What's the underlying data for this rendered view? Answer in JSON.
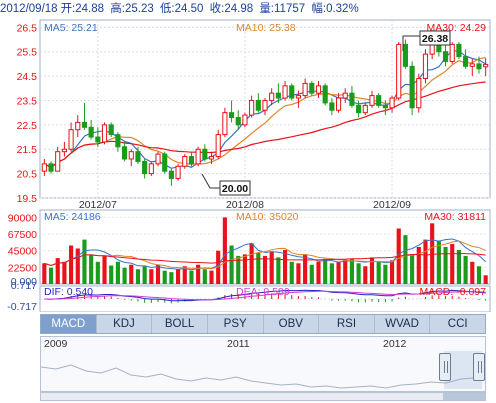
{
  "header": {
    "date": "2012/09/18",
    "open_label": "开:",
    "open": "24.88",
    "high_label": "高:",
    "high": "25.23",
    "low_label": "低:",
    "low": "24.50",
    "close_label": "收:",
    "close": "24.98",
    "volume_label": "量:",
    "volume": "11757",
    "change_label": "幅:",
    "change": "0.32%"
  },
  "colors": {
    "up": "#e8121b",
    "down": "#1b9b1b",
    "ma5": "#3b73c6",
    "ma10": "#e0852a",
    "ma30": "#e8121b",
    "dif": "#2424c8",
    "dea": "#d23cd2",
    "macd_up": "#e8121b",
    "macd_down": "#1b9b1b"
  },
  "price_panel": {
    "ma5_label": "MA5: 25.21",
    "ma10_label": "MA10: 25.38",
    "ma30_label": "MA30: 24.29",
    "y_ticks": [
      "26.5",
      "25.5",
      "24.5",
      "23.5",
      "22.5",
      "21.5",
      "20.5",
      "19.5"
    ],
    "x_labels": [
      "2012/07",
      "2012/08",
      "2012/09"
    ],
    "max_marker": "26.38",
    "min_marker": "20.00"
  },
  "volume_panel": {
    "ma5_label": "MA5: 24186",
    "ma10_label": "MA10: 35020",
    "ma30_label": "MA30: 31811",
    "y_ticks": [
      "90000",
      "67500",
      "45000",
      "22500"
    ]
  },
  "macd_panel": {
    "dif_label": "DIF: 0.540",
    "dea_label": "DEA: 0.589",
    "macd_label": "MACD: -0.097",
    "y_ticks": [
      "0.717",
      "0.000",
      "-0.717"
    ]
  },
  "tabs": [
    "MACD",
    "KDJ",
    "BOLL",
    "PSY",
    "OBV",
    "RSI",
    "WVAD",
    "CCI"
  ],
  "navigator": {
    "years": [
      "2009",
      "2011",
      "2012"
    ]
  },
  "chart_data": {
    "type": "candlestick",
    "title": "",
    "x_range": [
      "2012/06/20",
      "2012/09/18"
    ],
    "ylim_price": [
      19.5,
      26.8
    ],
    "ylim_volume": [
      0,
      100000
    ],
    "ylim_macd": [
      -0.95,
      0.95
    ],
    "x_ticks": [
      "2012/07",
      "2012/08",
      "2012/09"
    ],
    "grid": true,
    "candles": [
      [
        20.6,
        21.1,
        20.4,
        20.9
      ],
      [
        20.9,
        21.0,
        20.5,
        20.6
      ],
      [
        20.6,
        21.6,
        20.6,
        21.4
      ],
      [
        21.4,
        21.8,
        21.2,
        21.5
      ],
      [
        21.5,
        22.6,
        21.4,
        22.3
      ],
      [
        22.3,
        22.9,
        22.0,
        22.6
      ],
      [
        22.6,
        23.4,
        22.3,
        22.4
      ],
      [
        22.4,
        22.7,
        21.9,
        22.0
      ],
      [
        22.0,
        22.4,
        21.6,
        21.8
      ],
      [
        21.8,
        22.6,
        21.7,
        22.5
      ],
      [
        22.5,
        22.6,
        22.0,
        22.1
      ],
      [
        22.1,
        22.2,
        21.4,
        21.6
      ],
      [
        21.6,
        21.8,
        21.0,
        21.1
      ],
      [
        21.1,
        21.5,
        20.8,
        21.4
      ],
      [
        21.4,
        21.6,
        20.9,
        21.0
      ],
      [
        21.0,
        21.1,
        20.3,
        20.5
      ],
      [
        20.5,
        21.0,
        20.4,
        20.9
      ],
      [
        20.9,
        21.4,
        20.8,
        21.3
      ],
      [
        21.3,
        21.4,
        20.5,
        20.6
      ],
      [
        20.6,
        20.7,
        20.0,
        20.3
      ],
      [
        20.3,
        20.9,
        20.2,
        20.8
      ],
      [
        20.8,
        21.3,
        20.7,
        21.2
      ],
      [
        21.2,
        21.4,
        20.8,
        20.9
      ],
      [
        20.9,
        21.6,
        20.8,
        21.5
      ],
      [
        21.5,
        21.7,
        21.0,
        21.1
      ],
      [
        21.1,
        21.4,
        20.9,
        21.2
      ],
      [
        21.2,
        22.3,
        21.1,
        22.1
      ],
      [
        22.1,
        23.2,
        22.0,
        23.0
      ],
      [
        23.0,
        23.5,
        22.6,
        22.8
      ],
      [
        22.8,
        23.1,
        22.3,
        22.5
      ],
      [
        22.5,
        23.0,
        22.4,
        22.9
      ],
      [
        22.9,
        23.7,
        22.8,
        23.5
      ],
      [
        23.5,
        23.8,
        23.0,
        23.1
      ],
      [
        23.1,
        23.6,
        22.9,
        23.5
      ],
      [
        23.5,
        24.0,
        23.3,
        23.8
      ],
      [
        23.8,
        24.2,
        23.4,
        23.6
      ],
      [
        23.6,
        24.3,
        23.5,
        24.1
      ],
      [
        24.1,
        24.2,
        23.5,
        23.6
      ],
      [
        23.6,
        23.9,
        23.2,
        23.7
      ],
      [
        23.7,
        24.4,
        23.6,
        24.2
      ],
      [
        24.2,
        24.3,
        23.7,
        23.8
      ],
      [
        23.8,
        24.3,
        23.6,
        24.1
      ],
      [
        24.1,
        24.2,
        23.3,
        23.4
      ],
      [
        23.4,
        23.6,
        22.9,
        23.1
      ],
      [
        23.1,
        23.8,
        23.0,
        23.6
      ],
      [
        23.6,
        24.0,
        23.4,
        23.8
      ],
      [
        23.8,
        24.1,
        23.2,
        23.3
      ],
      [
        23.3,
        23.5,
        22.8,
        23.0
      ],
      [
        23.0,
        23.4,
        22.9,
        23.3
      ],
      [
        23.3,
        23.9,
        23.2,
        23.7
      ],
      [
        23.7,
        23.8,
        23.2,
        23.3
      ],
      [
        23.3,
        23.5,
        22.9,
        23.2
      ],
      [
        23.2,
        23.7,
        23.0,
        23.6
      ],
      [
        23.6,
        25.9,
        23.5,
        25.8
      ],
      [
        25.8,
        26.0,
        24.8,
        24.9
      ],
      [
        24.9,
        25.1,
        22.9,
        23.2
      ],
      [
        23.2,
        24.6,
        23.0,
        24.4
      ],
      [
        24.4,
        25.6,
        24.2,
        25.4
      ],
      [
        25.4,
        26.38,
        25.2,
        25.9
      ],
      [
        25.9,
        26.1,
        25.3,
        25.5
      ],
      [
        25.5,
        25.8,
        24.9,
        25.1
      ],
      [
        25.1,
        25.9,
        25.0,
        25.8
      ],
      [
        25.8,
        25.9,
        25.2,
        25.3
      ],
      [
        25.3,
        25.6,
        24.8,
        24.9
      ],
      [
        24.9,
        25.2,
        24.5,
        25.0
      ],
      [
        25.0,
        25.3,
        24.6,
        24.8
      ],
      [
        24.88,
        25.23,
        24.5,
        24.98
      ]
    ],
    "volume": [
      28000,
      22000,
      35000,
      30000,
      52000,
      48000,
      60000,
      40000,
      30000,
      38000,
      25000,
      30000,
      22000,
      26000,
      20000,
      24000,
      20000,
      26000,
      18000,
      16000,
      20000,
      24000,
      18000,
      26000,
      20000,
      18000,
      45000,
      90000,
      52000,
      38000,
      40000,
      55000,
      42000,
      38000,
      44000,
      36000,
      46000,
      30000,
      28000,
      40000,
      26000,
      30000,
      34000,
      28000,
      30000,
      32000,
      34000,
      28000,
      24000,
      36000,
      30000,
      26000,
      32000,
      75000,
      66000,
      40000,
      50000,
      60000,
      82000,
      58000,
      50000,
      54000,
      46000,
      38000,
      30000,
      24000,
      11757
    ],
    "ma5_volume_last": 24186,
    "ma10_volume_last": 35020,
    "ma30_volume_last": 31811,
    "macd": {
      "dif_last": 0.54,
      "dea_last": 0.589,
      "macd_last": -0.097
    }
  }
}
